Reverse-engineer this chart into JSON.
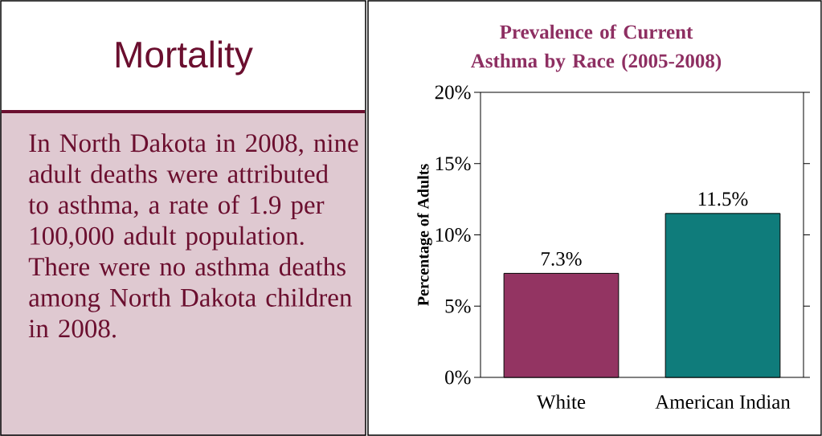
{
  "chart_data": [
    {
      "type": "other",
      "title": "Mortality",
      "annotations": [
        "In North Dakota in 2008, nine adult deaths were attributed to asthma, a rate of 1.9 per 100,000 adult population.  There were no asthma deaths among North Dakota children in 2008."
      ]
    },
    {
      "type": "bar",
      "title": "Prevalence of Current Asthma by Race (2005-2008)",
      "ylabel": "Percentage of Adults",
      "categories": [
        "White",
        "American Indian"
      ],
      "values": [
        7.3,
        11.5
      ],
      "colors": [
        "#933462",
        "#0f7c7b"
      ],
      "value_labels": [
        "7.3%",
        "11.5%"
      ],
      "ylim": [
        0,
        20
      ],
      "yticks": [
        {
          "value": 0,
          "label": "0%"
        },
        {
          "value": 5,
          "label": "5%"
        },
        {
          "value": 10,
          "label": "10%"
        },
        {
          "value": 15,
          "label": "15%"
        },
        {
          "value": 20,
          "label": "20%"
        }
      ]
    }
  ]
}
